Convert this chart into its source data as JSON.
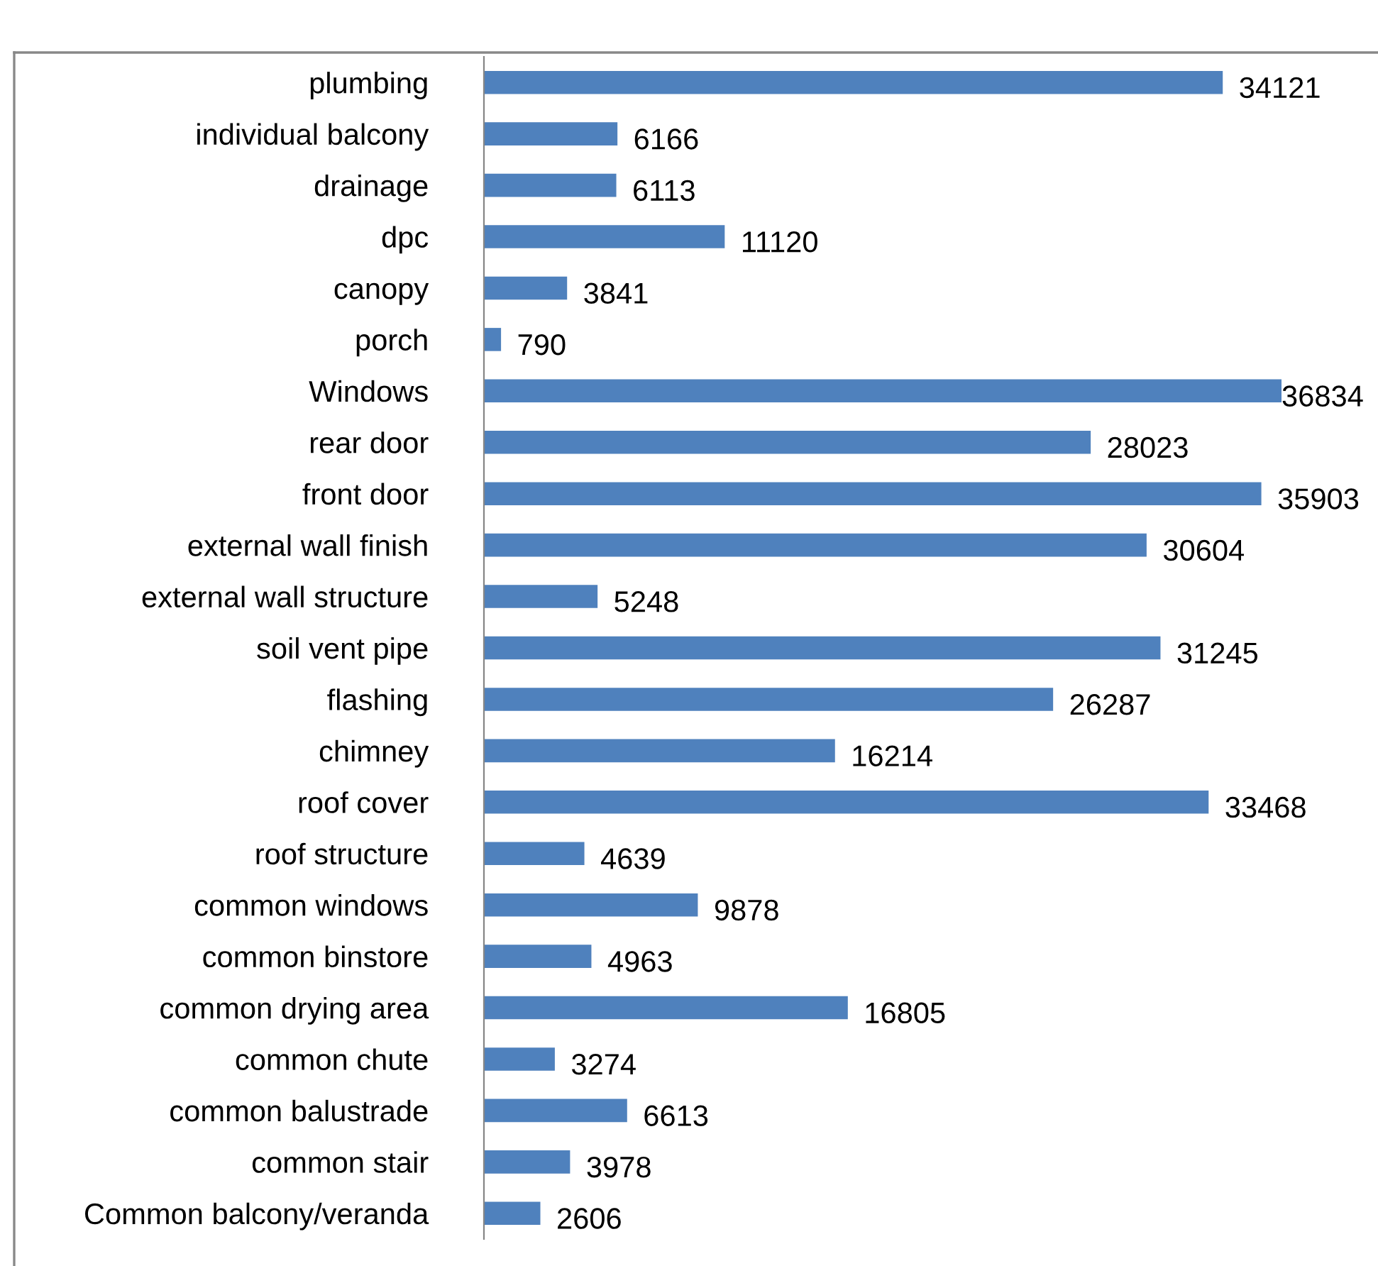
{
  "chart_data": {
    "type": "bar",
    "orientation": "horizontal",
    "data_labels": true,
    "color": "#4f81bd",
    "grid": false,
    "legend": false,
    "categories": [
      "plumbing",
      "individual balcony",
      "drainage",
      "dpc",
      "canopy",
      "porch",
      "Windows",
      "rear door",
      "front door",
      "external wall finish",
      "external wall structure",
      "soil vent pipe",
      "flashing",
      "chimney",
      "roof cover",
      "roof structure",
      "common windows",
      "common binstore",
      "common drying area",
      "common chute",
      "common balustrade",
      "common stair",
      "Common balcony/veranda"
    ],
    "values": [
      34121,
      6166,
      6113,
      11120,
      3841,
      790,
      36834,
      28023,
      35903,
      30604,
      5248,
      31245,
      26287,
      16214,
      33468,
      4639,
      9878,
      4963,
      16805,
      3274,
      6613,
      3978,
      2606
    ]
  }
}
